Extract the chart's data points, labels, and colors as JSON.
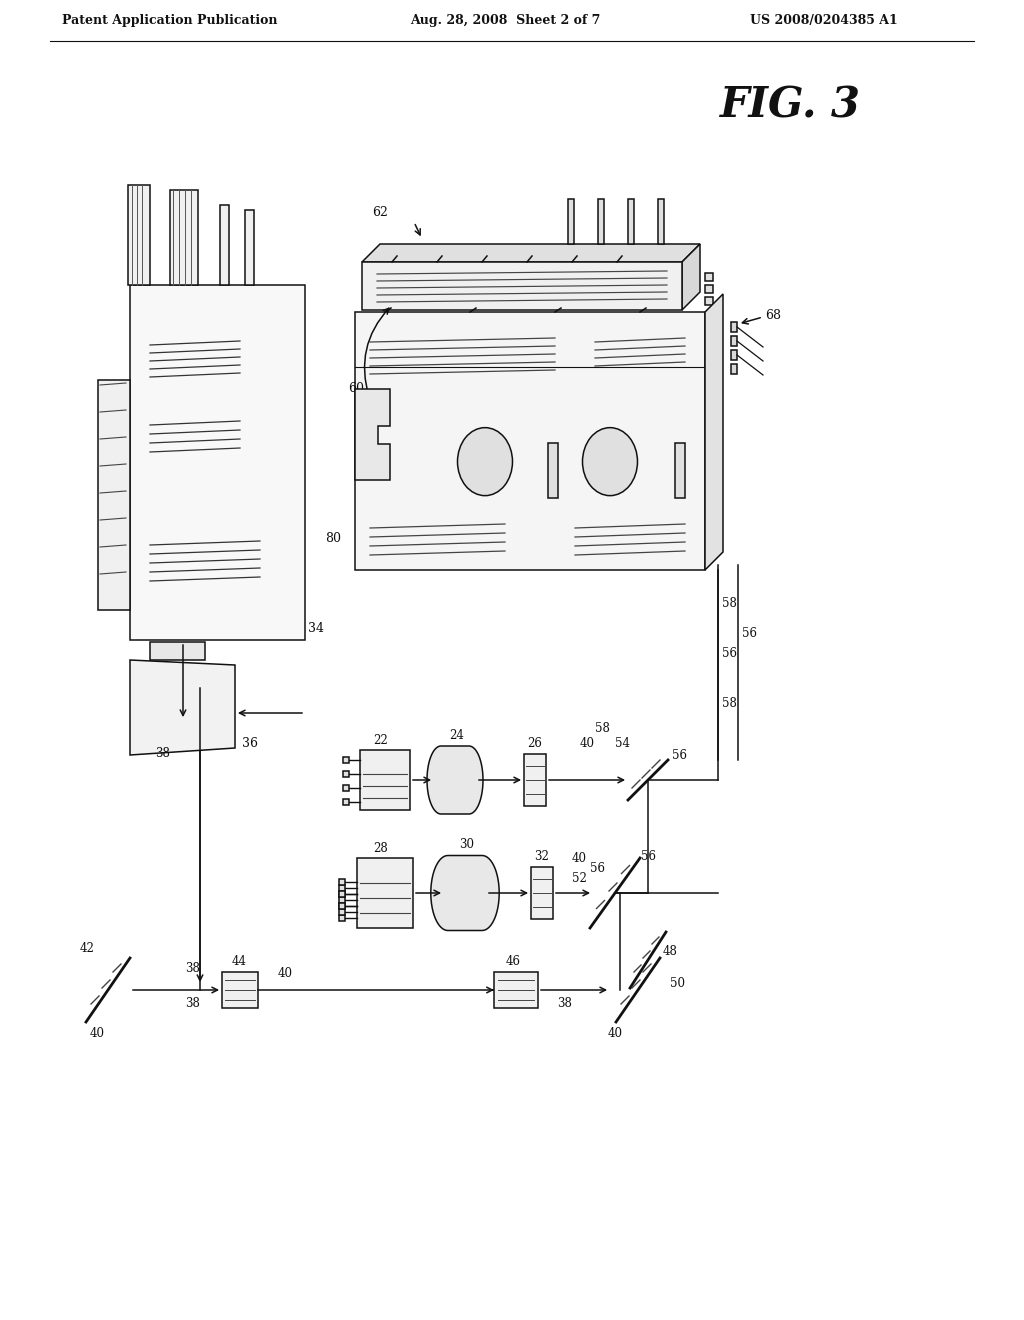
{
  "bg_color": "#ffffff",
  "header_left": "Patent Application Publication",
  "header_center": "Aug. 28, 2008  Sheet 2 of 7",
  "header_right": "US 2008/0204385 A1",
  "fig_label": "FIG. 3",
  "line_color": "#111111",
  "label_color": "#111111",
  "lw": 1.1
}
